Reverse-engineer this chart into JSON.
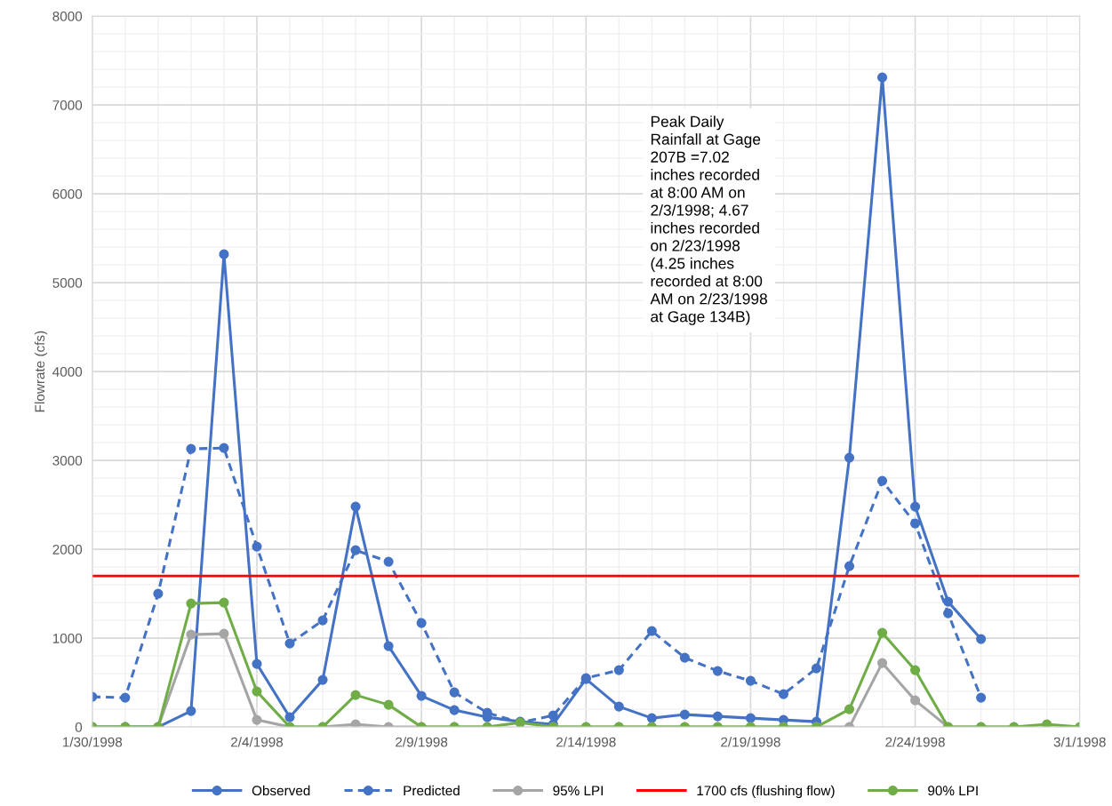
{
  "chart_data": {
    "type": "line",
    "ylabel": "Flowrate (cfs)",
    "x": [
      "1998-01-30",
      "1998-01-31",
      "1998-02-01",
      "1998-02-02",
      "1998-02-03",
      "1998-02-04",
      "1998-02-05",
      "1998-02-06",
      "1998-02-07",
      "1998-02-08",
      "1998-02-09",
      "1998-02-10",
      "1998-02-11",
      "1998-02-12",
      "1998-02-13",
      "1998-02-14",
      "1998-02-15",
      "1998-02-16",
      "1998-02-17",
      "1998-02-18",
      "1998-02-19",
      "1998-02-20",
      "1998-02-21",
      "1998-02-22",
      "1998-02-23",
      "1998-02-24",
      "1998-02-25",
      "1998-02-26",
      "1998-02-27",
      "1998-02-28",
      "1998-03-01"
    ],
    "series": [
      {
        "name": "Observed",
        "color": "#4472c4",
        "line_style": "solid",
        "values": [
          0,
          0,
          0,
          180,
          5320,
          710,
          110,
          530,
          2480,
          910,
          350,
          190,
          110,
          60,
          30,
          540,
          230,
          100,
          140,
          120,
          100,
          80,
          60,
          3030,
          7310,
          2480,
          1410,
          990,
          null,
          null,
          null
        ]
      },
      {
        "name": "Predicted",
        "color": "#4472c4",
        "line_style": "dashed",
        "values": [
          340,
          330,
          1500,
          3130,
          3140,
          2030,
          940,
          1200,
          1990,
          1860,
          1170,
          390,
          160,
          50,
          130,
          550,
          640,
          1080,
          780,
          630,
          520,
          370,
          660,
          1810,
          2770,
          2290,
          1280,
          330,
          null,
          null,
          null
        ]
      },
      {
        "name": "95% LPI",
        "color": "#a5a5a5",
        "line_style": "solid",
        "values": [
          0,
          0,
          0,
          1040,
          1050,
          80,
          0,
          0,
          30,
          0,
          0,
          0,
          0,
          null,
          0,
          0,
          0,
          0,
          0,
          0,
          0,
          0,
          0,
          0,
          720,
          300,
          0,
          0,
          0,
          null,
          null
        ]
      },
      {
        "name": "90% LPI",
        "color": "#70ad47",
        "line_style": "solid",
        "values": [
          0,
          0,
          0,
          1390,
          1400,
          400,
          0,
          0,
          360,
          250,
          0,
          0,
          0,
          50,
          0,
          0,
          0,
          0,
          0,
          0,
          0,
          0,
          0,
          200,
          1060,
          640,
          0,
          0,
          0,
          30,
          0
        ]
      }
    ],
    "ref_lines": [
      {
        "axis": "y",
        "value": 1700,
        "label": "1700 cfs (flushing flow)",
        "color": "#ff0000"
      }
    ],
    "annotations": [
      "Peak Daily\nRainfall at Gage\n207B =7.02\ninches recorded\nat 8:00 AM on\n2/3/1998; 4.67\ninches recorded\non 2/23/1998\n(4.25 inches\nrecorded at 8:00\nAM on 2/23/1998\nat Gage 134B)"
    ],
    "xlim": [
      "1998-01-30",
      "1998-03-01"
    ],
    "xticks": [
      {
        "value": "1998-01-30",
        "label": "1/30/1998"
      },
      {
        "value": "1998-02-04",
        "label": "2/4/1998"
      },
      {
        "value": "1998-02-09",
        "label": "2/9/1998"
      },
      {
        "value": "1998-02-14",
        "label": "2/14/1998"
      },
      {
        "value": "1998-02-19",
        "label": "2/19/1998"
      },
      {
        "value": "1998-02-24",
        "label": "2/24/1998"
      },
      {
        "value": "1998-03-01",
        "label": "3/1/1998"
      }
    ],
    "ylim": [
      0,
      8000
    ],
    "yticks": [
      0,
      1000,
      2000,
      3000,
      4000,
      5000,
      6000,
      7000,
      8000
    ],
    "grid": true,
    "legend": "bottom",
    "marker": "circle"
  }
}
